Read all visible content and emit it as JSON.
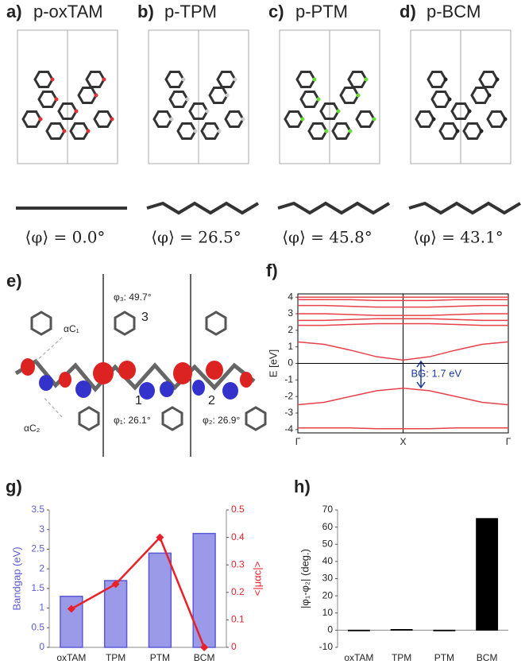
{
  "panels": [
    {
      "label": "a)",
      "title": "p-oxTAM",
      "angle": "⟨φ⟩ = 0.0°"
    },
    {
      "label": "b)",
      "title": "p-TPM",
      "angle": "⟨φ⟩ = 26.5°"
    },
    {
      "label": "c)",
      "title": "p-PTM",
      "angle": "⟨φ⟩ = 45.8°"
    },
    {
      "label": "d)",
      "title": "p-BCM",
      "angle": "⟨φ⟩ = 43.1°"
    }
  ],
  "panel_e": {
    "label": "e)",
    "annotations": [
      "αC₁",
      "αC₂",
      "φ₃: 49.7°",
      "3",
      "1",
      "φ₁: 26.1°",
      "2",
      "φ₂: 26.9°"
    ]
  },
  "chart_data": [
    {
      "type": "line",
      "label": "f)",
      "ylabel": "E [eV]",
      "annotation": "BG: 1.7 eV",
      "x": [
        0,
        0.125,
        0.25,
        0.375,
        0.5,
        0.625,
        0.75,
        0.875,
        1
      ],
      "xlim": [
        0,
        1
      ],
      "xticks": [
        {
          "value": 0,
          "label": "Γ"
        },
        {
          "value": 0.5,
          "label": "X"
        },
        {
          "value": 1,
          "label": "Γ"
        }
      ],
      "ylim": [
        -4.2,
        4.2
      ],
      "yticks": [
        -4,
        -3,
        -2,
        -1,
        0,
        1,
        2,
        3,
        4
      ],
      "frame": true,
      "xgrid": true,
      "series": [
        {
          "color": "#e8404a",
          "values": [
            1.3,
            1.15,
            0.8,
            0.4,
            0.2,
            0.4,
            0.8,
            1.15,
            1.3
          ]
        },
        {
          "color": "#e8404a",
          "values": [
            -2.5,
            -2.35,
            -2.0,
            -1.65,
            -1.5,
            -1.65,
            -2.0,
            -2.35,
            -2.5
          ]
        },
        {
          "color": "#e8404a",
          "values": [
            2.3,
            2.3,
            2.35,
            2.4,
            2.4,
            2.4,
            2.35,
            2.3,
            2.3
          ]
        },
        {
          "color": "#e8404a",
          "values": [
            2.6,
            2.6,
            2.65,
            2.7,
            2.7,
            2.7,
            2.65,
            2.6,
            2.6
          ]
        },
        {
          "color": "#e8404a",
          "values": [
            3.0,
            3.0,
            2.95,
            2.9,
            2.9,
            2.9,
            2.95,
            3.0,
            3.0
          ]
        },
        {
          "color": "#e8404a",
          "values": [
            3.5,
            3.5,
            3.45,
            3.4,
            3.4,
            3.4,
            3.45,
            3.5,
            3.5
          ]
        },
        {
          "color": "#e8404a",
          "values": [
            3.85,
            3.85,
            3.85,
            3.8,
            3.8,
            3.8,
            3.85,
            3.85,
            3.85
          ]
        },
        {
          "color": "#e8404a",
          "values": [
            4.0,
            4.0,
            4.0,
            4.0,
            4.0,
            4.0,
            4.0,
            4.0,
            4.0
          ]
        },
        {
          "color": "#e8404a",
          "values": [
            -3.9,
            -3.9,
            -3.9,
            -3.95,
            -3.95,
            -3.95,
            -3.9,
            -3.9,
            -3.9
          ]
        }
      ]
    },
    {
      "type": "bar",
      "label": "g)",
      "ylabel": "Bandgap (eV)",
      "y2label": "<|μαc|>",
      "categories": [
        "oxTAM",
        "TPM",
        "PTM",
        "BCM"
      ],
      "ylim": [
        0,
        3.5
      ],
      "yticks": [
        0,
        0.5,
        1,
        1.5,
        2,
        2.5,
        3,
        3.5
      ],
      "y2lim": [
        0,
        0.5
      ],
      "y2ticks": [
        0,
        0.1,
        0.2,
        0.3,
        0.4,
        0.5
      ],
      "series": [
        {
          "color": "#9a9ae8",
          "values": [
            1.3,
            1.7,
            2.4,
            2.9
          ]
        },
        {
          "type": "line",
          "axis": "y2",
          "color": "#e8202a",
          "values": [
            0.14,
            0.23,
            0.4,
            0.0
          ]
        }
      ]
    },
    {
      "type": "bar",
      "label": "h)",
      "ylabel": "|φ₁-φ₂|  (deg.)",
      "categories": [
        "oxTAM",
        "TPM",
        "PTM",
        "BCM"
      ],
      "ylim": [
        -10,
        70
      ],
      "yticks": [
        -10,
        0,
        10,
        20,
        30,
        40,
        50,
        60,
        70
      ],
      "series": [
        {
          "color": "#000000",
          "values": [
            -0.2,
            0.4,
            -0.2,
            65
          ]
        }
      ]
    }
  ]
}
